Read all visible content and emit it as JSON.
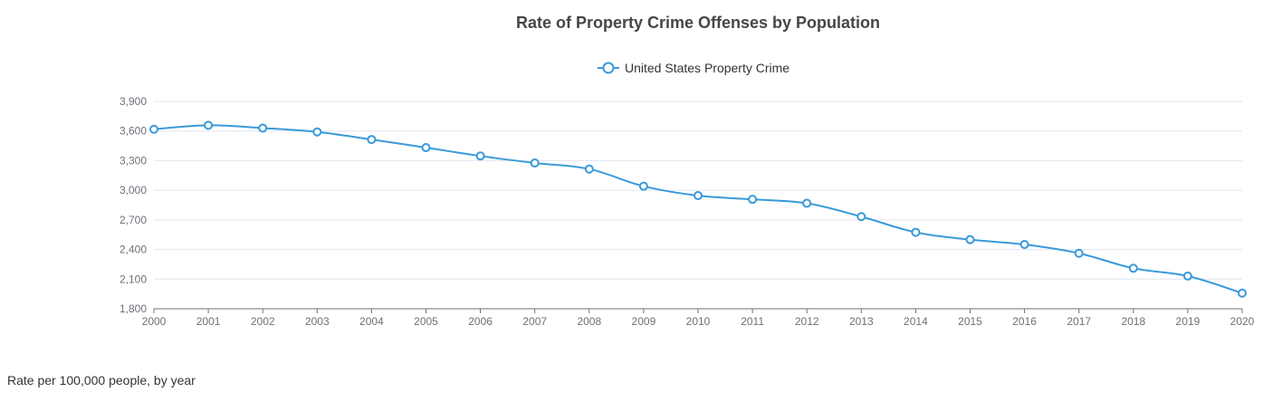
{
  "chart_data": {
    "type": "line",
    "title": "Rate of Property Crime Offenses by Population",
    "legend": {
      "position": "top-center",
      "entries": [
        "United States Property Crime"
      ]
    },
    "x": [
      "2000",
      "2001",
      "2002",
      "2003",
      "2004",
      "2005",
      "2006",
      "2007",
      "2008",
      "2009",
      "2010",
      "2011",
      "2012",
      "2013",
      "2014",
      "2015",
      "2016",
      "2017",
      "2018",
      "2019",
      "2020"
    ],
    "series": [
      {
        "name": "United States Property Crime",
        "color": "#3a9ad9",
        "values": [
          3618,
          3658,
          3630,
          3591,
          3514,
          3432,
          3347,
          3276,
          3215,
          3041,
          2946,
          2908,
          2868,
          2733,
          2574,
          2500,
          2451,
          2362,
          2210,
          2131,
          1958
        ]
      }
    ],
    "y_ticks": [
      1800,
      2100,
      2400,
      2700,
      3000,
      3300,
      3600,
      3900
    ],
    "ylim": [
      1800,
      3900
    ],
    "xlabel": "",
    "ylabel": "",
    "grid": true
  },
  "footer": {
    "note": "Rate per 100,000 people, by year"
  },
  "colors": {
    "title": "#464646",
    "axis_text": "#6e7079",
    "grid": "#e0e6f1",
    "axis_line": "#6e7079"
  }
}
